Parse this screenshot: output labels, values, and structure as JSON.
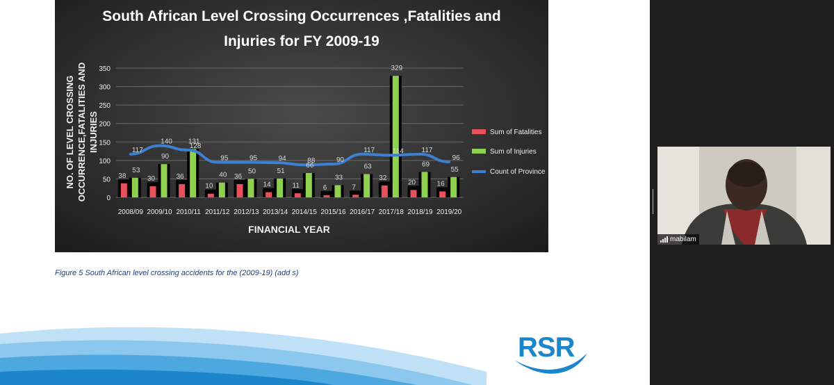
{
  "chart_data": {
    "type": "bar",
    "title_line1": "South African Level Crossing Occurrences ,Fatalities and",
    "title_line2": "Injuries for FY 2009-19",
    "xlabel": "FINANCIAL YEAR",
    "ylabel_lines": [
      "NO. OF LEVEL CROSSING",
      "OCCURRENCE,FATALITIES AND",
      "INJURIES"
    ],
    "ylim": [
      0,
      350
    ],
    "yticks": [
      0,
      50,
      100,
      150,
      200,
      250,
      300,
      350
    ],
    "categories": [
      "2008/09",
      "2009/10",
      "2010/11",
      "2011/12",
      "2012/13",
      "2013/14",
      "2014/15",
      "2015/16",
      "2016/17",
      "2017/18",
      "2018/19",
      "2019/20"
    ],
    "series": [
      {
        "name": "Sum of Fatalities",
        "kind": "bar",
        "color": "#e8505b",
        "values": [
          38,
          30,
          36,
          10,
          36,
          14,
          11,
          6,
          7,
          32,
          20,
          16
        ]
      },
      {
        "name": "Sum of Injuries",
        "kind": "bar",
        "color": "#8fd14f",
        "values": [
          53,
          90,
          131,
          40,
          50,
          51,
          66,
          33,
          63,
          329,
          69,
          55
        ]
      },
      {
        "name": "Count of Province",
        "kind": "line",
        "color": "#3d7fd1",
        "values": [
          117,
          140,
          128,
          95,
          95,
          94,
          88,
          90,
          117,
          114,
          117,
          96
        ]
      }
    ],
    "occurrence_bar_values": [
      53,
      90,
      131,
      40,
      50,
      51,
      66,
      33,
      63,
      329,
      69,
      55
    ],
    "legend_position": "right",
    "grid": true
  },
  "caption": "Figure 5 South African level crossing accidents for the (2009-19) (add s)",
  "logo_text": "RSR",
  "participant": {
    "name": "mabilam"
  }
}
